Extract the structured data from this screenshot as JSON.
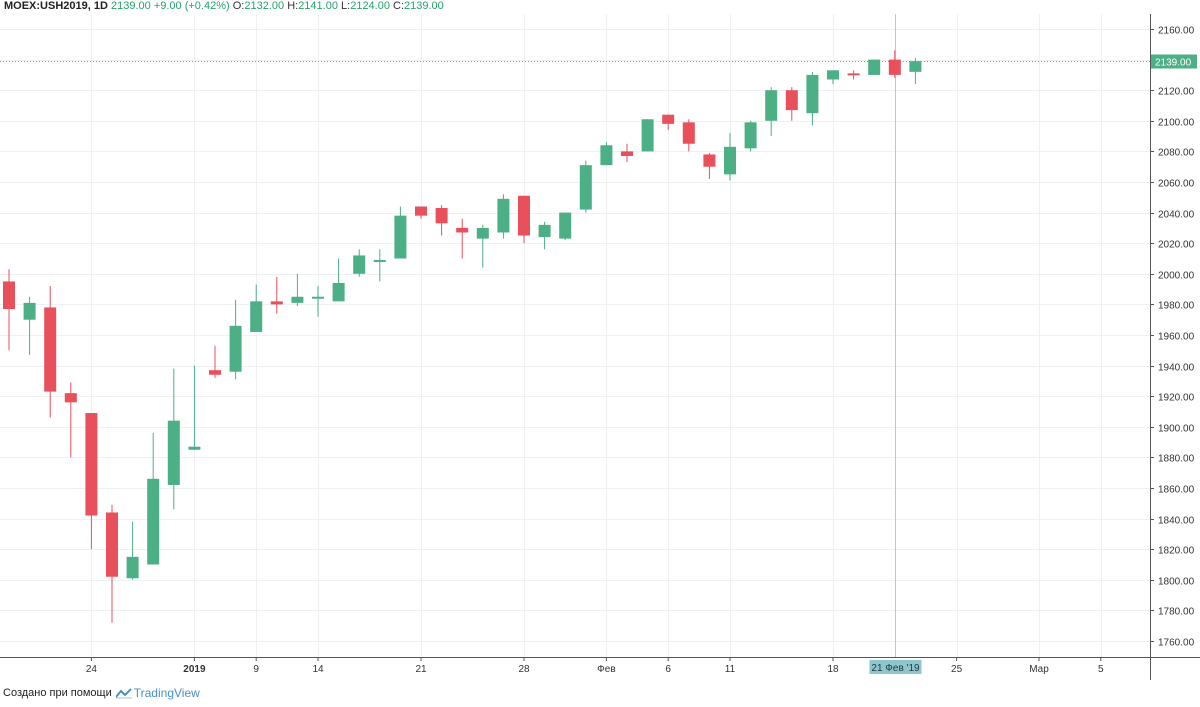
{
  "header": {
    "symbol": "MOEX:USH2019, 1D",
    "last": "2139.00",
    "change": "+9.00 (+0.42%)",
    "o_label": "O:",
    "o_value": "2132.00",
    "h_label": "H:",
    "h_value": "2141.00",
    "l_label": "L:",
    "l_value": "2124.00",
    "c_label": "C:",
    "c_value": "2139.00"
  },
  "footer": {
    "created_with": "Создано при помощи",
    "brand": "TradingView"
  },
  "colors": {
    "up": "#4caf86",
    "down": "#e8505b",
    "grid": "#eef1f4",
    "crosshair": "#9fd3d7",
    "price_line": "#4fb88a",
    "badge_bg": "#8ec6ce"
  },
  "chart_data": {
    "type": "candlestick",
    "symbol": "MOEX:USH2019",
    "interval": "1D",
    "ylim": [
      1750,
      2170
    ],
    "y_ticks": [
      1760,
      1780,
      1800,
      1820,
      1840,
      1860,
      1880,
      1900,
      1920,
      1940,
      1960,
      1980,
      2000,
      2020,
      2040,
      2060,
      2080,
      2100,
      2120,
      2140,
      2160
    ],
    "y_tick_labels": [
      "1760.00",
      "1780.00",
      "1800.00",
      "1820.00",
      "1840.00",
      "1860.00",
      "1880.00",
      "1900.00",
      "1920.00",
      "1940.00",
      "1960.00",
      "1980.00",
      "2000.00",
      "2020.00",
      "2040.00",
      "2060.00",
      "2080.00",
      "2100.00",
      "2120.00",
      "2140.00",
      "2160.00"
    ],
    "x_tick_labels": [
      {
        "label": "24",
        "index": 4,
        "bold": false
      },
      {
        "label": "2019",
        "index": 9,
        "bold": true
      },
      {
        "label": "9",
        "index": 12,
        "bold": false
      },
      {
        "label": "14",
        "index": 15,
        "bold": false
      },
      {
        "label": "21",
        "index": 20,
        "bold": false
      },
      {
        "label": "28",
        "index": 25,
        "bold": false
      },
      {
        "label": "Фев",
        "index": 29,
        "bold": false
      },
      {
        "label": "6",
        "index": 32,
        "bold": false
      },
      {
        "label": "11",
        "index": 35,
        "bold": false
      },
      {
        "label": "18",
        "index": 40,
        "bold": false
      },
      {
        "label": "25",
        "index": 46,
        "bold": false
      },
      {
        "label": "Мар",
        "index": 50,
        "bold": false
      },
      {
        "label": "5",
        "index": 53,
        "bold": false
      }
    ],
    "last_price": 2139,
    "last_price_label": "2139.00",
    "crosshair_index": 43,
    "crosshair_label": "21 Фев '19",
    "grid": true,
    "candles": [
      {
        "o": 1995,
        "h": 2003,
        "l": 1950,
        "c": 1977
      },
      {
        "o": 1970,
        "h": 1985,
        "l": 1947,
        "c": 1981
      },
      {
        "o": 1978,
        "h": 1992,
        "l": 1906,
        "c": 1923
      },
      {
        "o": 1922,
        "h": 1929,
        "l": 1880,
        "c": 1916
      },
      {
        "o": 1909,
        "h": 1909,
        "l": 1820,
        "c": 1842
      },
      {
        "o": 1844,
        "h": 1849,
        "l": 1772,
        "c": 1802
      },
      {
        "o": 1801,
        "h": 1838,
        "l": 1800,
        "c": 1815
      },
      {
        "o": 1810,
        "h": 1896,
        "l": 1810,
        "c": 1866
      },
      {
        "o": 1862,
        "h": 1938,
        "l": 1846,
        "c": 1904
      },
      {
        "o": 1885,
        "h": 1940,
        "l": 1885,
        "c": 1887
      },
      {
        "o": 1937,
        "h": 1953,
        "l": 1932,
        "c": 1934
      },
      {
        "o": 1936,
        "h": 1983,
        "l": 1931,
        "c": 1966
      },
      {
        "o": 1962,
        "h": 1993,
        "l": 1962,
        "c": 1982
      },
      {
        "o": 1982,
        "h": 1998,
        "l": 1974,
        "c": 1980
      },
      {
        "o": 1981,
        "h": 2000,
        "l": 1979,
        "c": 1985
      },
      {
        "o": 1985,
        "h": 1992,
        "l": 1972,
        "c": 1985
      },
      {
        "o": 1982,
        "h": 2010,
        "l": 1982,
        "c": 1994
      },
      {
        "o": 2000,
        "h": 2016,
        "l": 1998,
        "c": 2012
      },
      {
        "o": 2008,
        "h": 2016,
        "l": 1995,
        "c": 2009
      },
      {
        "o": 2010,
        "h": 2044,
        "l": 2010,
        "c": 2038
      },
      {
        "o": 2044,
        "h": 2044,
        "l": 2036,
        "c": 2038
      },
      {
        "o": 2043,
        "h": 2045,
        "l": 2025,
        "c": 2033
      },
      {
        "o": 2030,
        "h": 2036,
        "l": 2010,
        "c": 2027
      },
      {
        "o": 2023,
        "h": 2032,
        "l": 2004,
        "c": 2030
      },
      {
        "o": 2027,
        "h": 2052,
        "l": 2023,
        "c": 2049
      },
      {
        "o": 2051,
        "h": 2051,
        "l": 2020,
        "c": 2025
      },
      {
        "o": 2024,
        "h": 2034,
        "l": 2016,
        "c": 2032
      },
      {
        "o": 2023,
        "h": 2040,
        "l": 2022,
        "c": 2040
      },
      {
        "o": 2042,
        "h": 2074,
        "l": 2040,
        "c": 2071
      },
      {
        "o": 2071,
        "h": 2086,
        "l": 2071,
        "c": 2084
      },
      {
        "o": 2080,
        "h": 2085,
        "l": 2073,
        "c": 2077
      },
      {
        "o": 2080,
        "h": 2101,
        "l": 2080,
        "c": 2101
      },
      {
        "o": 2104,
        "h": 2104,
        "l": 2094,
        "c": 2098
      },
      {
        "o": 2099,
        "h": 2101,
        "l": 2080,
        "c": 2085
      },
      {
        "o": 2078,
        "h": 2079,
        "l": 2062,
        "c": 2070
      },
      {
        "o": 2065,
        "h": 2092,
        "l": 2061,
        "c": 2083
      },
      {
        "o": 2082,
        "h": 2100,
        "l": 2080,
        "c": 2099
      },
      {
        "o": 2100,
        "h": 2122,
        "l": 2090,
        "c": 2120
      },
      {
        "o": 2120,
        "h": 2122,
        "l": 2100,
        "c": 2107
      },
      {
        "o": 2105,
        "h": 2132,
        "l": 2097,
        "c": 2130
      },
      {
        "o": 2127,
        "h": 2133,
        "l": 2124,
        "c": 2133
      },
      {
        "o": 2131,
        "h": 2133,
        "l": 2127,
        "c": 2130
      },
      {
        "o": 2130,
        "h": 2140,
        "l": 2130,
        "c": 2140
      },
      {
        "o": 2140,
        "h": 2146,
        "l": 2128,
        "c": 2130
      },
      {
        "o": 2132,
        "h": 2141,
        "l": 2124,
        "c": 2139
      }
    ]
  }
}
